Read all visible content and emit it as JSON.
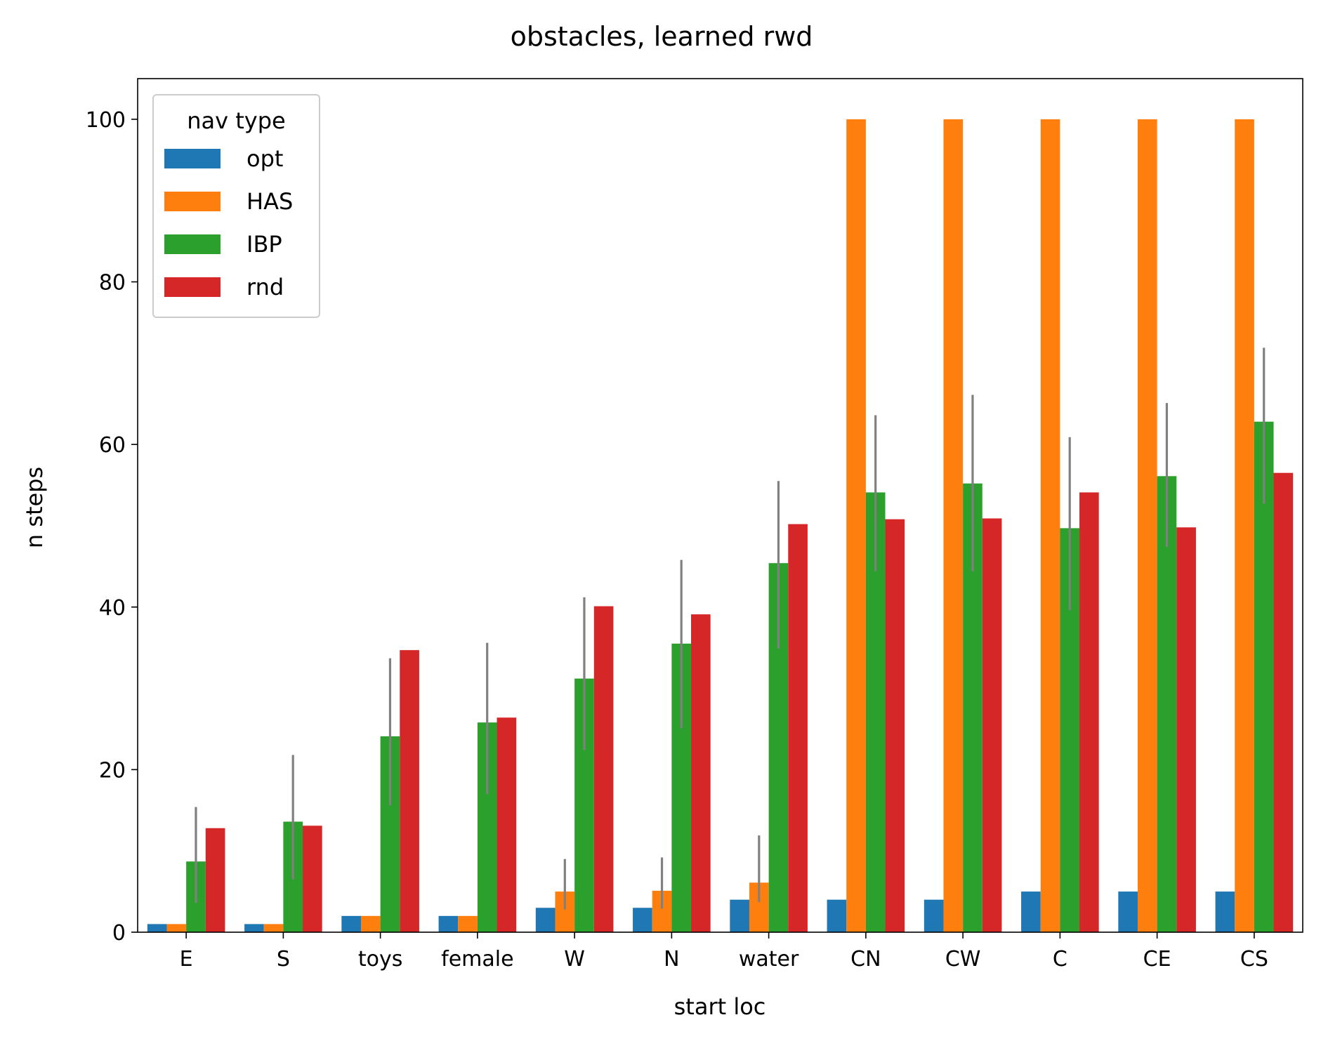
{
  "chart_data": {
    "type": "bar",
    "title": "obstacles, learned rwd",
    "xlabel": "start loc",
    "ylabel": "n steps",
    "ylim": [
      0,
      105
    ],
    "yticks": [
      0,
      20,
      40,
      60,
      80,
      100
    ],
    "grid": false,
    "legend": {
      "title": "nav type",
      "placement": "top-left"
    },
    "categories": [
      "E",
      "S",
      "toys",
      "female",
      "W",
      "N",
      "water",
      "CN",
      "CW",
      "C",
      "CE",
      "CS"
    ],
    "series": [
      {
        "name": "opt",
        "color": "#1f77b4",
        "values": [
          1,
          1,
          2,
          2,
          3,
          3,
          4,
          4,
          4,
          5,
          5,
          5
        ],
        "error": [
          null,
          null,
          null,
          null,
          null,
          null,
          null,
          null,
          null,
          null,
          null,
          null
        ]
      },
      {
        "name": "HAS",
        "color": "#ff7f0e",
        "values": [
          1,
          1,
          2,
          2,
          5,
          5.1,
          6.1,
          100,
          100,
          100,
          100,
          100
        ],
        "error": [
          null,
          null,
          null,
          null,
          [
            2.8,
            9
          ],
          [
            2.9,
            9.2
          ],
          [
            3.7,
            11.9
          ],
          null,
          null,
          null,
          null,
          null
        ]
      },
      {
        "name": "IBP",
        "color": "#2ca02c",
        "values": [
          8.7,
          13.6,
          24.1,
          25.8,
          31.2,
          35.5,
          45.4,
          54.1,
          55.2,
          49.7,
          56.1,
          62.8
        ],
        "error": [
          [
            3.6,
            15.4
          ],
          [
            6.5,
            21.8
          ],
          [
            15.6,
            33.7
          ],
          [
            17.0,
            35.6
          ],
          [
            22.4,
            41.2
          ],
          [
            25.1,
            45.8
          ],
          [
            34.9,
            55.5
          ],
          [
            44.4,
            63.6
          ],
          [
            44.4,
            66.1
          ],
          [
            39.6,
            60.9
          ],
          [
            47.4,
            65.1
          ],
          [
            52.7,
            71.9
          ]
        ]
      },
      {
        "name": "rnd",
        "color": "#d62728",
        "values": [
          12.8,
          13.1,
          34.7,
          26.4,
          40.1,
          39.1,
          50.2,
          50.8,
          50.9,
          54.1,
          49.8,
          56.5
        ],
        "error": [
          null,
          null,
          null,
          null,
          null,
          null,
          null,
          null,
          null,
          null,
          null,
          null
        ]
      }
    ]
  }
}
